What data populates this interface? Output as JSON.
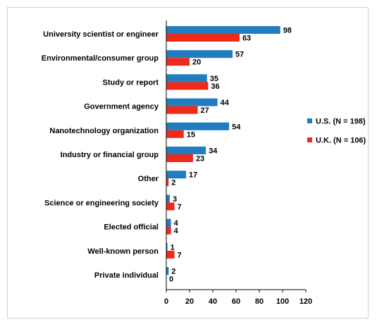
{
  "chart_data": {
    "type": "bar",
    "orientation": "horizontal",
    "categories": [
      "University scientist or engineer",
      "Environmental/consumer group",
      "Study or report",
      "Government agency",
      "Nanotechnology organization",
      "Industry or financial group",
      "Other",
      "Science or engineering society",
      "Elected official",
      "Well-known person",
      "Private individual"
    ],
    "series": [
      {
        "name": "U.S. (N = 198)",
        "color": "#1f7dc0",
        "values": [
          98,
          57,
          35,
          44,
          54,
          34,
          17,
          3,
          4,
          1,
          2
        ]
      },
      {
        "name": "U.K. (N = 106)",
        "color": "#ee2a1b",
        "values": [
          63,
          20,
          36,
          27,
          15,
          23,
          2,
          7,
          4,
          7,
          0
        ]
      }
    ],
    "xlim": [
      0,
      120
    ],
    "xticks": [
      "0",
      "20",
      "40",
      "60",
      "80",
      "100",
      "120"
    ],
    "legend_position": "right",
    "grid": false
  }
}
